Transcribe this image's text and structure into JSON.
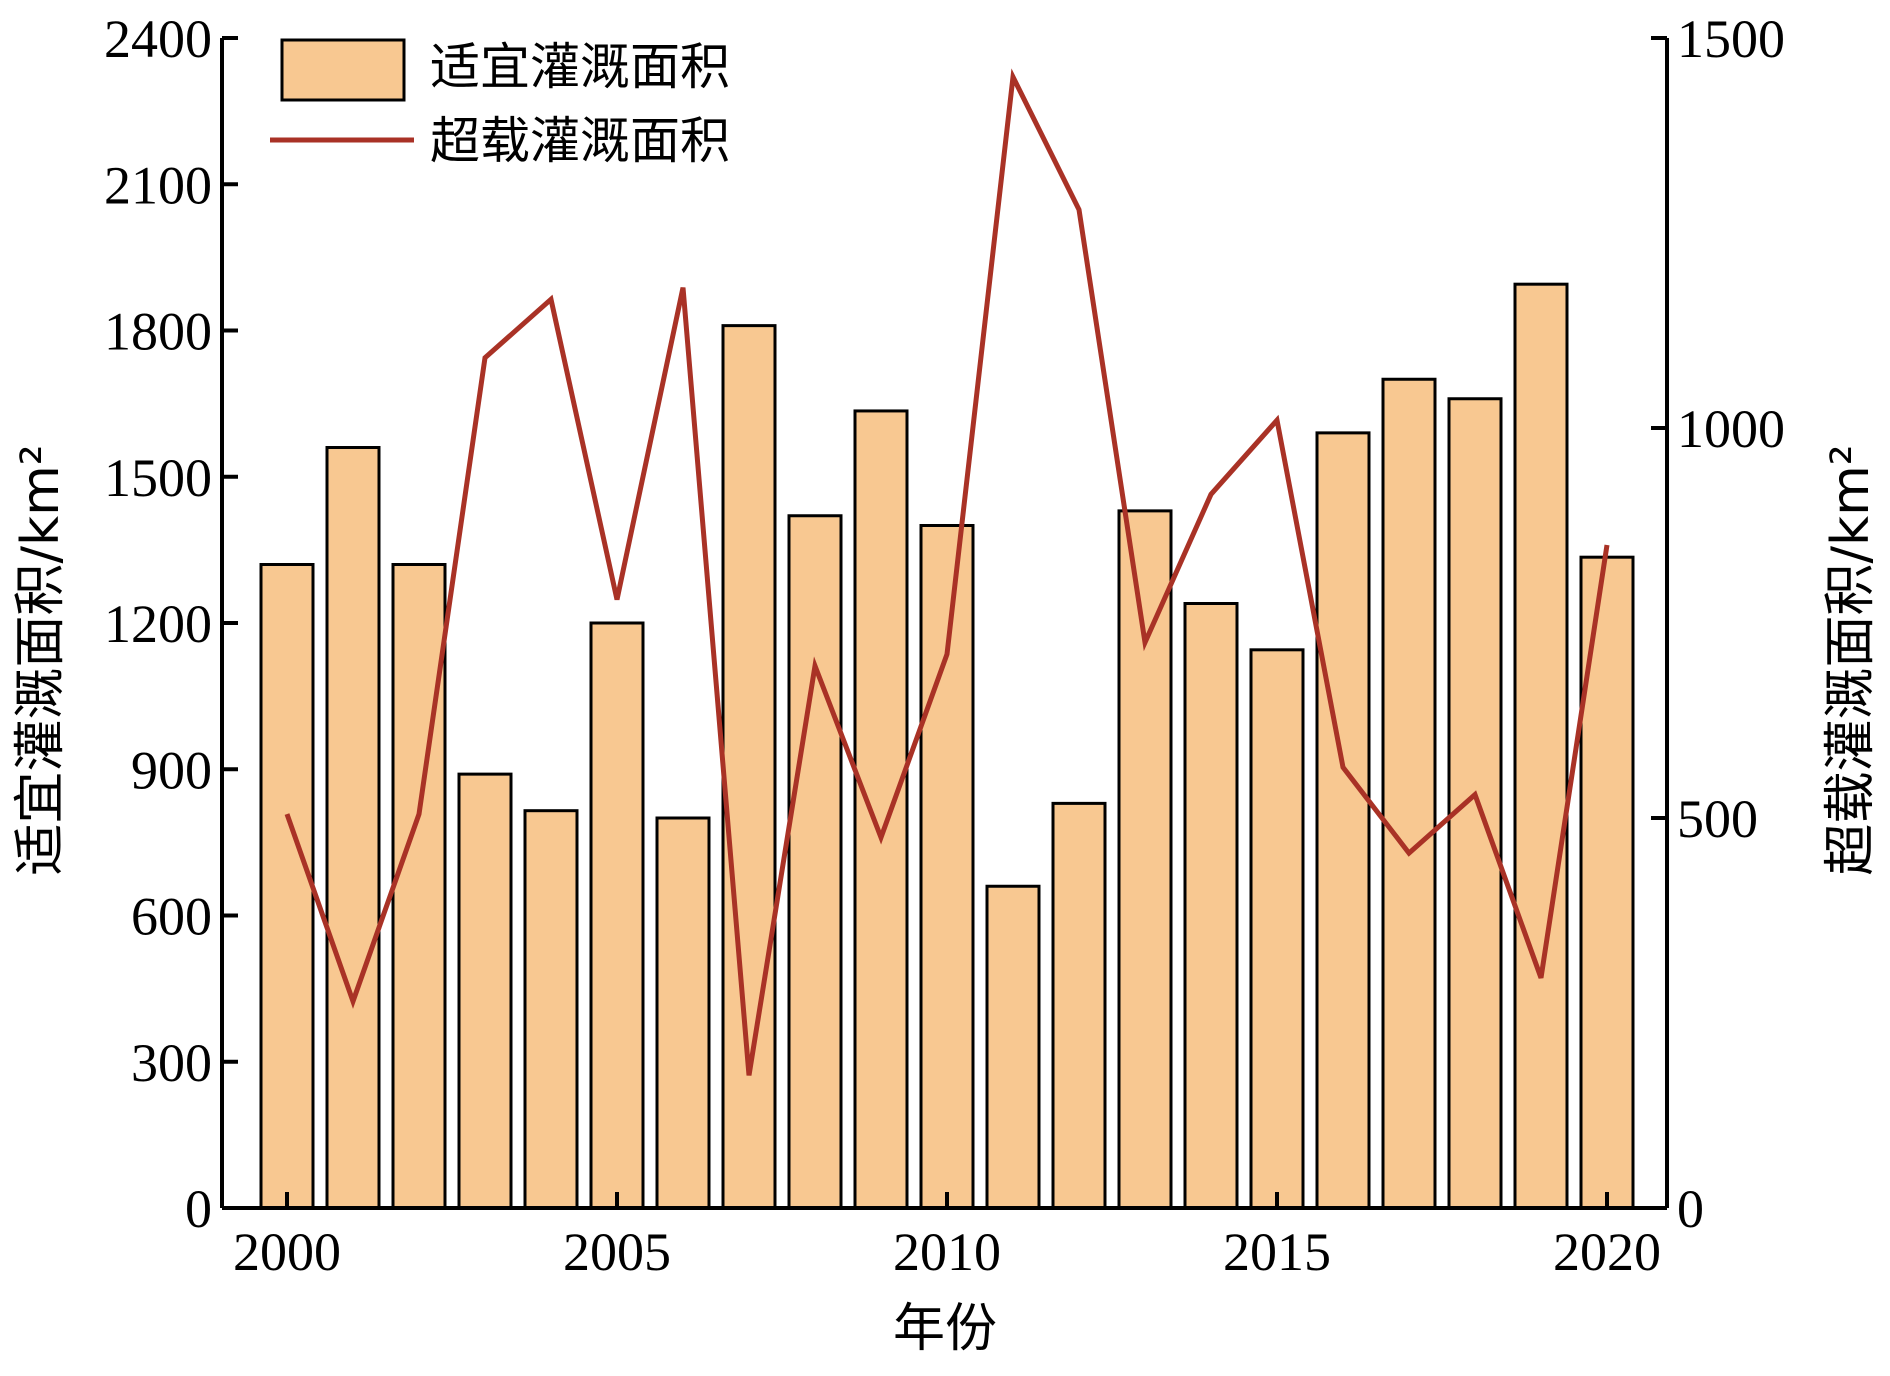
{
  "chart_data": {
    "type": "bar+line",
    "x": [
      2000,
      2001,
      2002,
      2003,
      2004,
      2005,
      2006,
      2007,
      2008,
      2009,
      2010,
      2011,
      2012,
      2013,
      2014,
      2015,
      2016,
      2017,
      2018,
      2019,
      2020
    ],
    "x_ticks": [
      "2000",
      "2005",
      "2010",
      "2015",
      "2020"
    ],
    "xlabel": "年份",
    "ylabel_left": "适宜灌溉面积/km²",
    "ylabel_right": "超载灌溉面积/km²",
    "ylim_left": [
      0,
      2400
    ],
    "ylim_right": [
      0,
      1500
    ],
    "yticks_left": [
      "0",
      "300",
      "600",
      "900",
      "1200",
      "1500",
      "1800",
      "2100",
      "2400"
    ],
    "yticks_right": [
      "0",
      "500",
      "1000",
      "1500"
    ],
    "legend_position": "top-left",
    "grid": false,
    "series": [
      {
        "name": "适宜灌溉面积",
        "type": "bar",
        "axis": "left",
        "color": "#F8C891",
        "edge_color": "#000000",
        "values": [
          1320,
          1560,
          1320,
          890,
          815,
          1200,
          800,
          1810,
          1420,
          1635,
          1400,
          660,
          830,
          1430,
          1240,
          1145,
          1590,
          1700,
          1660,
          1895,
          1335
        ]
      },
      {
        "name": "超载灌溉面积",
        "type": "line",
        "axis": "right",
        "color": "#A93226",
        "values": [
          505,
          265,
          505,
          1090,
          1165,
          780,
          1180,
          170,
          695,
          475,
          710,
          1450,
          1280,
          725,
          915,
          1010,
          565,
          455,
          530,
          295,
          850
        ]
      }
    ]
  }
}
